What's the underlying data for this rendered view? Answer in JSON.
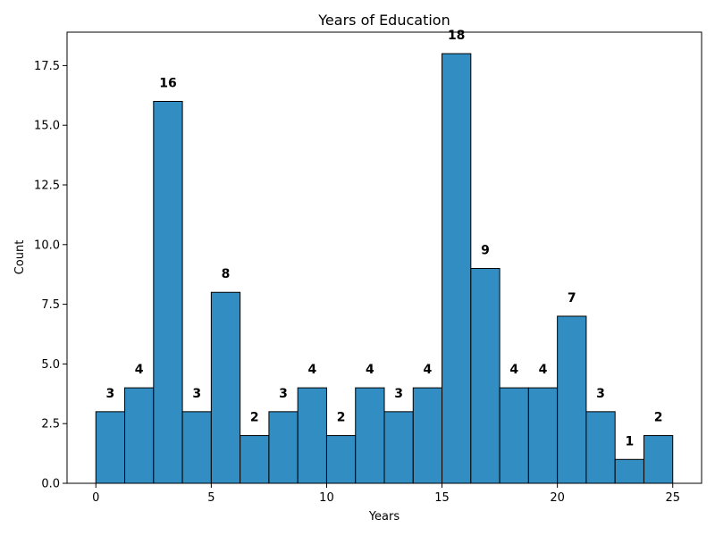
{
  "chart_data": {
    "type": "bar",
    "title": "Years of Education",
    "xlabel": "Years",
    "ylabel": "Count",
    "xlim": [
      -1.25,
      26.25
    ],
    "ylim": [
      0,
      18.9
    ],
    "x_ticks": [
      0,
      5,
      10,
      15,
      20,
      25
    ],
    "x_tick_labels": [
      "0",
      "5",
      "10",
      "15",
      "20",
      "25"
    ],
    "y_ticks": [
      0,
      2.5,
      5,
      7.5,
      10,
      12.5,
      15,
      17.5
    ],
    "y_tick_labels": [
      "0.0",
      "2.5",
      "5.0",
      "7.5",
      "10.0",
      "12.5",
      "15.0",
      "17.5"
    ],
    "bin_edges": [
      0,
      1.25,
      2.5,
      3.75,
      5,
      6.25,
      7.5,
      8.75,
      10,
      11.25,
      12.5,
      13.75,
      15,
      16.25,
      17.5,
      18.75,
      20,
      21.25,
      22.5,
      23.75,
      25
    ],
    "values": [
      3,
      4,
      16,
      3,
      8,
      2,
      3,
      4,
      2,
      4,
      3,
      4,
      18,
      9,
      4,
      4,
      7,
      3,
      1,
      2
    ],
    "value_labels": [
      "3",
      "4",
      "16",
      "3",
      "8",
      "2",
      "3",
      "4",
      "2",
      "4",
      "3",
      "4",
      "18",
      "9",
      "4",
      "4",
      "7",
      "3",
      "1",
      "2"
    ],
    "bar_color": "#318dc2",
    "edge_color": "#000000",
    "grid": false
  }
}
